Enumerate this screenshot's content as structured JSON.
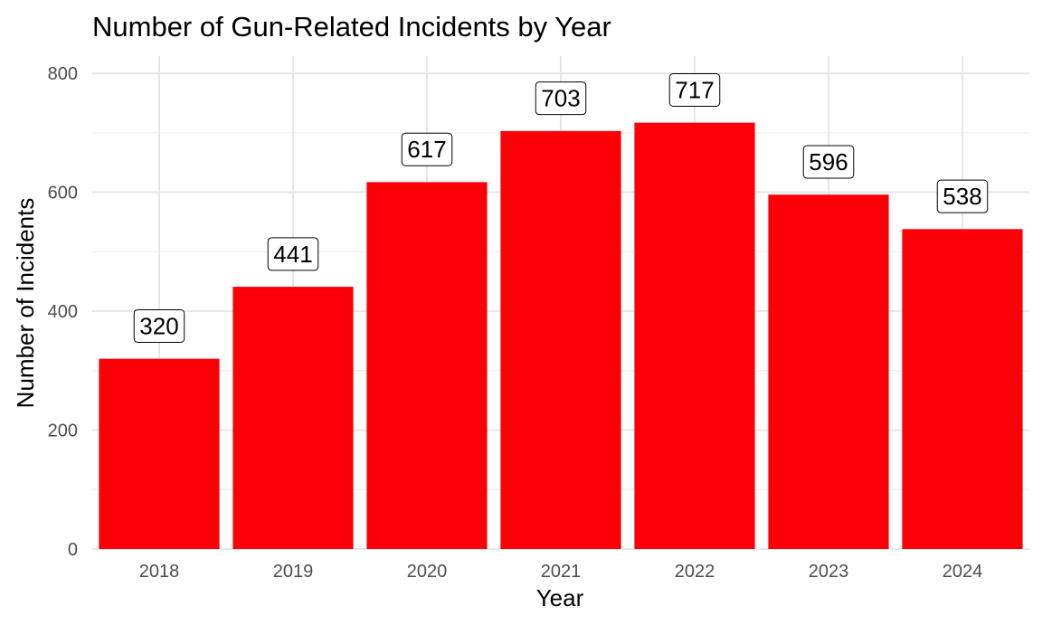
{
  "chart_data": {
    "type": "bar",
    "title": "Number of Gun-Related Incidents by Year",
    "xlabel": "Year",
    "ylabel": "Number of Incidents",
    "categories": [
      "2018",
      "2019",
      "2020",
      "2021",
      "2022",
      "2023",
      "2024"
    ],
    "values": [
      320,
      441,
      617,
      703,
      717,
      596,
      538
    ],
    "ylim": [
      0,
      800
    ],
    "yticks": [
      0,
      200,
      400,
      600,
      800
    ],
    "bar_color": "#fc0007",
    "grid": true,
    "data_labels": true,
    "legend": "none"
  }
}
